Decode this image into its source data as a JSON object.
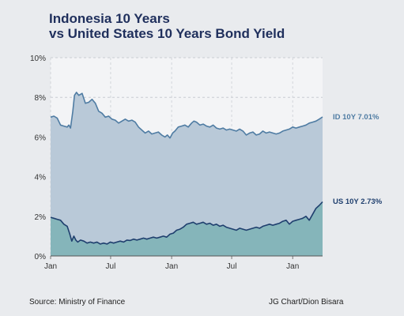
{
  "chart_data": {
    "type": "area",
    "title_line1": "Indonesia 10 Years",
    "title_line2": "vs United States 10 Years Bond Yield",
    "ylim": [
      0,
      10
    ],
    "yticks": [
      "0%",
      "2%",
      "4%",
      "6%",
      "8%",
      "10%"
    ],
    "xticks": [
      {
        "label": "Jan",
        "t": 0
      },
      {
        "label": "Jul",
        "t": 181
      },
      {
        "label": "Jan",
        "t": 365
      },
      {
        "label": "Jul",
        "t": 546
      },
      {
        "label": "Jan",
        "t": 730
      }
    ],
    "xrange": [
      0,
      820
    ],
    "grid": true,
    "series": [
      {
        "name": "ID 10Y",
        "label": "ID 10Y 7.01%",
        "color": "#4f7ca3",
        "fill": "#b9c9d8",
        "points": [
          [
            0,
            7.0
          ],
          [
            10,
            7.05
          ],
          [
            20,
            6.95
          ],
          [
            30,
            6.6
          ],
          [
            40,
            6.55
          ],
          [
            50,
            6.5
          ],
          [
            55,
            6.6
          ],
          [
            60,
            6.45
          ],
          [
            67,
            7.3
          ],
          [
            72,
            8.1
          ],
          [
            78,
            8.25
          ],
          [
            85,
            8.1
          ],
          [
            95,
            8.2
          ],
          [
            105,
            7.7
          ],
          [
            115,
            7.75
          ],
          [
            125,
            7.9
          ],
          [
            135,
            7.7
          ],
          [
            145,
            7.3
          ],
          [
            155,
            7.2
          ],
          [
            165,
            7.0
          ],
          [
            175,
            7.05
          ],
          [
            185,
            6.9
          ],
          [
            195,
            6.85
          ],
          [
            205,
            6.7
          ],
          [
            215,
            6.8
          ],
          [
            225,
            6.9
          ],
          [
            235,
            6.8
          ],
          [
            245,
            6.85
          ],
          [
            255,
            6.75
          ],
          [
            265,
            6.5
          ],
          [
            275,
            6.35
          ],
          [
            285,
            6.2
          ],
          [
            295,
            6.3
          ],
          [
            305,
            6.15
          ],
          [
            315,
            6.2
          ],
          [
            325,
            6.25
          ],
          [
            335,
            6.1
          ],
          [
            345,
            6.0
          ],
          [
            352,
            6.1
          ],
          [
            360,
            5.95
          ],
          [
            368,
            6.2
          ],
          [
            375,
            6.3
          ],
          [
            385,
            6.5
          ],
          [
            395,
            6.55
          ],
          [
            405,
            6.6
          ],
          [
            415,
            6.5
          ],
          [
            425,
            6.7
          ],
          [
            432,
            6.8
          ],
          [
            440,
            6.75
          ],
          [
            450,
            6.6
          ],
          [
            460,
            6.65
          ],
          [
            470,
            6.55
          ],
          [
            480,
            6.5
          ],
          [
            490,
            6.6
          ],
          [
            500,
            6.45
          ],
          [
            510,
            6.4
          ],
          [
            520,
            6.45
          ],
          [
            530,
            6.35
          ],
          [
            540,
            6.4
          ],
          [
            550,
            6.35
          ],
          [
            560,
            6.3
          ],
          [
            570,
            6.4
          ],
          [
            580,
            6.3
          ],
          [
            590,
            6.1
          ],
          [
            600,
            6.2
          ],
          [
            610,
            6.25
          ],
          [
            620,
            6.1
          ],
          [
            630,
            6.15
          ],
          [
            640,
            6.3
          ],
          [
            650,
            6.2
          ],
          [
            660,
            6.25
          ],
          [
            670,
            6.2
          ],
          [
            680,
            6.15
          ],
          [
            690,
            6.2
          ],
          [
            700,
            6.3
          ],
          [
            710,
            6.35
          ],
          [
            720,
            6.4
          ],
          [
            730,
            6.5
          ],
          [
            740,
            6.45
          ],
          [
            750,
            6.5
          ],
          [
            760,
            6.55
          ],
          [
            770,
            6.6
          ],
          [
            780,
            6.7
          ],
          [
            790,
            6.75
          ],
          [
            800,
            6.8
          ],
          [
            810,
            6.9
          ],
          [
            820,
            7.01
          ]
        ]
      },
      {
        "name": "US 10Y",
        "label": "US 10Y 2.73%",
        "color": "#1f3f6e",
        "fill": "#82b4b8",
        "points": [
          [
            0,
            1.95
          ],
          [
            10,
            1.9
          ],
          [
            20,
            1.85
          ],
          [
            30,
            1.8
          ],
          [
            40,
            1.6
          ],
          [
            50,
            1.5
          ],
          [
            58,
            1.1
          ],
          [
            64,
            0.75
          ],
          [
            70,
            1.0
          ],
          [
            76,
            0.8
          ],
          [
            82,
            0.7
          ],
          [
            90,
            0.8
          ],
          [
            100,
            0.75
          ],
          [
            110,
            0.65
          ],
          [
            120,
            0.7
          ],
          [
            130,
            0.65
          ],
          [
            140,
            0.7
          ],
          [
            150,
            0.6
          ],
          [
            160,
            0.65
          ],
          [
            170,
            0.6
          ],
          [
            180,
            0.7
          ],
          [
            190,
            0.65
          ],
          [
            200,
            0.7
          ],
          [
            210,
            0.75
          ],
          [
            220,
            0.7
          ],
          [
            230,
            0.8
          ],
          [
            240,
            0.78
          ],
          [
            250,
            0.85
          ],
          [
            260,
            0.8
          ],
          [
            270,
            0.85
          ],
          [
            280,
            0.9
          ],
          [
            290,
            0.85
          ],
          [
            300,
            0.9
          ],
          [
            310,
            0.95
          ],
          [
            320,
            0.9
          ],
          [
            330,
            0.95
          ],
          [
            340,
            1.0
          ],
          [
            350,
            0.95
          ],
          [
            360,
            1.1
          ],
          [
            370,
            1.15
          ],
          [
            380,
            1.3
          ],
          [
            390,
            1.35
          ],
          [
            400,
            1.45
          ],
          [
            410,
            1.6
          ],
          [
            420,
            1.65
          ],
          [
            430,
            1.7
          ],
          [
            440,
            1.6
          ],
          [
            450,
            1.65
          ],
          [
            460,
            1.7
          ],
          [
            470,
            1.6
          ],
          [
            480,
            1.65
          ],
          [
            490,
            1.55
          ],
          [
            500,
            1.6
          ],
          [
            510,
            1.5
          ],
          [
            520,
            1.55
          ],
          [
            530,
            1.45
          ],
          [
            540,
            1.4
          ],
          [
            550,
            1.35
          ],
          [
            560,
            1.3
          ],
          [
            570,
            1.4
          ],
          [
            580,
            1.35
          ],
          [
            590,
            1.3
          ],
          [
            600,
            1.35
          ],
          [
            610,
            1.4
          ],
          [
            620,
            1.45
          ],
          [
            630,
            1.4
          ],
          [
            640,
            1.5
          ],
          [
            650,
            1.55
          ],
          [
            660,
            1.6
          ],
          [
            670,
            1.55
          ],
          [
            680,
            1.6
          ],
          [
            690,
            1.65
          ],
          [
            700,
            1.75
          ],
          [
            710,
            1.8
          ],
          [
            720,
            1.6
          ],
          [
            730,
            1.75
          ],
          [
            740,
            1.8
          ],
          [
            750,
            1.85
          ],
          [
            760,
            1.9
          ],
          [
            770,
            2.0
          ],
          [
            780,
            1.8
          ],
          [
            790,
            2.1
          ],
          [
            800,
            2.4
          ],
          [
            810,
            2.55
          ],
          [
            820,
            2.73
          ]
        ]
      }
    ]
  },
  "footer": {
    "source": "Source: Ministry of Finance",
    "credit": "JG Chart/Dion Bisara"
  }
}
